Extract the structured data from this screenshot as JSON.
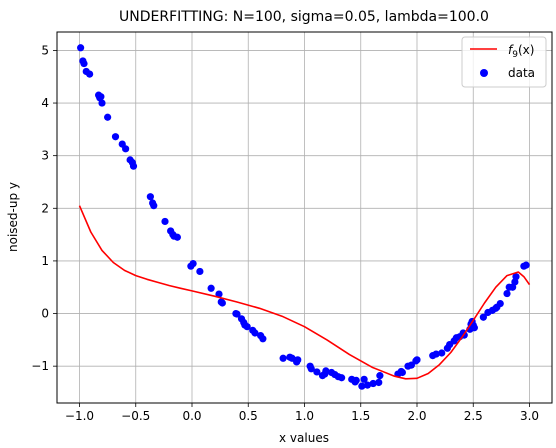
{
  "chart_data": {
    "type": "scatter",
    "title": "UNDERFITTING: N=100, sigma=0.05, lambda=100.0",
    "xlabel": "x values",
    "ylabel": "noised-up y",
    "xlim": [
      -1.2,
      3.2
    ],
    "ylim": [
      -1.7,
      5.35
    ],
    "xticks": [
      -1.0,
      -0.5,
      0.0,
      0.5,
      1.0,
      1.5,
      2.0,
      2.5,
      3.0
    ],
    "xtick_labels": [
      "−1.0",
      "−0.5",
      "0.0",
      "0.5",
      "1.0",
      "1.5",
      "2.0",
      "2.5",
      "3.0"
    ],
    "yticks": [
      -1,
      0,
      1,
      2,
      3,
      4,
      5
    ],
    "ytick_labels": [
      "−1",
      "0",
      "1",
      "2",
      "3",
      "4",
      "5"
    ],
    "grid": true,
    "legend_position": "top-right",
    "series": [
      {
        "name": "f_9(x)",
        "type": "line",
        "color": "#ff0000",
        "x": [
          -1.0,
          -0.9,
          -0.8,
          -0.7,
          -0.6,
          -0.5,
          -0.4,
          -0.3,
          -0.2,
          -0.1,
          0.0,
          0.2,
          0.4,
          0.6,
          0.8,
          1.0,
          1.2,
          1.4,
          1.6,
          1.8,
          1.9,
          2.0,
          2.1,
          2.2,
          2.3,
          2.4,
          2.5,
          2.6,
          2.7,
          2.8,
          2.9,
          2.95,
          3.0
        ],
        "y": [
          2.05,
          1.55,
          1.2,
          0.97,
          0.82,
          0.72,
          0.65,
          0.59,
          0.53,
          0.48,
          0.43,
          0.33,
          0.22,
          0.1,
          -0.05,
          -0.25,
          -0.5,
          -0.78,
          -1.02,
          -1.19,
          -1.24,
          -1.23,
          -1.14,
          -0.97,
          -0.74,
          -0.45,
          -0.13,
          0.2,
          0.5,
          0.72,
          0.79,
          0.7,
          0.55
        ]
      },
      {
        "name": "data",
        "type": "scatter",
        "color": "#0000ff",
        "x": [
          -0.99,
          -0.97,
          -0.96,
          -0.94,
          -0.91,
          -0.83,
          -0.82,
          -0.81,
          -0.8,
          -0.75,
          -0.68,
          -0.62,
          -0.59,
          -0.55,
          -0.53,
          -0.52,
          -0.37,
          -0.35,
          -0.34,
          -0.24,
          -0.19,
          -0.17,
          -0.16,
          -0.13,
          -0.01,
          0.01,
          0.07,
          0.17,
          0.24,
          0.26,
          0.27,
          0.39,
          0.4,
          0.44,
          0.46,
          0.47,
          0.49,
          0.54,
          0.56,
          0.61,
          0.63,
          0.81,
          0.87,
          0.89,
          0.93,
          0.94,
          1.05,
          1.06,
          1.11,
          1.16,
          1.18,
          1.19,
          1.24,
          1.27,
          1.3,
          1.33,
          1.42,
          1.45,
          1.46,
          1.51,
          1.53,
          1.56,
          1.61,
          1.66,
          1.67,
          1.83,
          1.86,
          1.87,
          1.92,
          1.95,
          1.99,
          2.0,
          2.14,
          2.17,
          2.22,
          2.27,
          2.29,
          2.33,
          2.35,
          2.38,
          2.41,
          2.42,
          2.47,
          2.48,
          2.49,
          2.5,
          2.51,
          2.59,
          2.63,
          2.67,
          2.7,
          2.71,
          2.74,
          2.8,
          2.82,
          2.85,
          2.87,
          2.88,
          2.95,
          2.97
        ],
        "y": [
          5.05,
          4.8,
          4.75,
          4.6,
          4.55,
          4.15,
          4.1,
          4.12,
          4.0,
          3.73,
          3.36,
          3.22,
          3.13,
          2.92,
          2.87,
          2.8,
          2.22,
          2.1,
          2.05,
          1.75,
          1.57,
          1.5,
          1.47,
          1.45,
          0.9,
          0.95,
          0.8,
          0.48,
          0.37,
          0.22,
          0.2,
          0.0,
          -0.01,
          -0.1,
          -0.17,
          -0.22,
          -0.25,
          -0.32,
          -0.37,
          -0.42,
          -0.48,
          -0.85,
          -0.83,
          -0.85,
          -0.92,
          -0.88,
          -1.0,
          -1.05,
          -1.11,
          -1.18,
          -1.15,
          -1.09,
          -1.12,
          -1.16,
          -1.2,
          -1.22,
          -1.25,
          -1.3,
          -1.27,
          -1.38,
          -1.25,
          -1.36,
          -1.33,
          -1.31,
          -1.18,
          -1.15,
          -1.1,
          -1.12,
          -1.0,
          -0.98,
          -0.9,
          -0.88,
          -0.8,
          -0.77,
          -0.75,
          -0.66,
          -0.59,
          -0.52,
          -0.46,
          -0.44,
          -0.37,
          -0.41,
          -0.3,
          -0.2,
          -0.15,
          -0.22,
          -0.27,
          -0.07,
          0.02,
          0.06,
          0.1,
          0.12,
          0.19,
          0.38,
          0.5,
          0.5,
          0.6,
          0.7,
          0.9,
          0.92
        ]
      }
    ]
  },
  "legend": {
    "line_label_base": "f",
    "line_label_sub": "9",
    "line_label_tail": "(x)",
    "scatter_label": "data"
  },
  "colors": {
    "line": "#ff0000",
    "points": "#0000ff",
    "grid": "#b0b0b0"
  }
}
